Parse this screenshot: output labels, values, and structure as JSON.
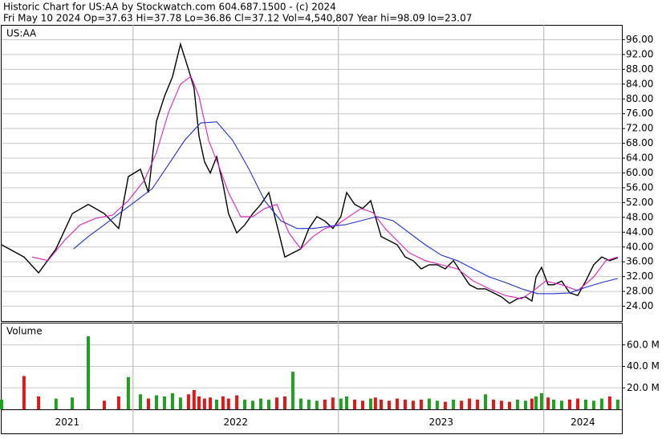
{
  "chart_data": {
    "type": "line",
    "title": "Historic Chart for US:AA by Stockwatch.com 604.687.1500 - (c) 2024",
    "subtitle": "Fri May 10 2024   Op=37.63   Hi=37.78   Lo=36.86   Cl=37.12   Vol=4,540,807   Year hi=98.09   lo=23.07",
    "symbol": "US:AA",
    "grid": true,
    "xlim": [
      2021.36,
      2024.38
    ],
    "xticks": [
      {
        "value": 2021,
        "label": "2021"
      },
      {
        "value": 2022,
        "label": "2022"
      },
      {
        "value": 2023,
        "label": "2023"
      },
      {
        "value": 2024,
        "label": "2024"
      }
    ],
    "ylim": [
      20,
      100
    ],
    "yticks": [
      {
        "value": 24,
        "label": "24.00"
      },
      {
        "value": 28,
        "label": "28.00"
      },
      {
        "value": 32,
        "label": "32.00"
      },
      {
        "value": 36,
        "label": "36.00"
      },
      {
        "value": 40,
        "label": "40.00"
      },
      {
        "value": 44,
        "label": "44.00"
      },
      {
        "value": 48,
        "label": "48.00"
      },
      {
        "value": 52,
        "label": "52.00"
      },
      {
        "value": 56,
        "label": "56.00"
      },
      {
        "value": 60,
        "label": "60.00"
      },
      {
        "value": 64,
        "label": "64.00"
      },
      {
        "value": 68,
        "label": "68.00"
      },
      {
        "value": 72,
        "label": "72.00"
      },
      {
        "value": 76,
        "label": "76.00"
      },
      {
        "value": 80,
        "label": "80.00"
      },
      {
        "value": 84,
        "label": "84.00"
      },
      {
        "value": 88,
        "label": "88.00"
      },
      {
        "value": 92,
        "label": "92.00"
      },
      {
        "value": 96,
        "label": "96.00"
      }
    ],
    "series": [
      {
        "color": "#000000",
        "x": [
          2021.36,
          2021.469,
          2021.54,
          2021.625,
          2021.704,
          2021.782,
          2021.86,
          2021.93,
          2021.977,
          2022.036,
          2022.075,
          2022.114,
          2022.153,
          2022.192,
          2022.231,
          2022.27,
          2022.297,
          2022.321,
          2022.348,
          2022.376,
          2022.407,
          2022.438,
          2022.465,
          2022.505,
          2022.544,
          2022.583,
          2022.622,
          2022.661,
          2022.7,
          2022.739,
          2022.778,
          2022.817,
          2022.856,
          2022.895,
          2022.934,
          2022.973,
          2023.012,
          2023.04,
          2023.079,
          2023.118,
          2023.157,
          2023.18,
          2023.208,
          2023.247,
          2023.286,
          2023.325,
          2023.364,
          2023.403,
          2023.442,
          2023.481,
          2023.52,
          2023.56,
          2023.599,
          2023.638,
          2023.677,
          2023.716,
          2023.755,
          2023.794,
          2023.833,
          2023.872,
          2023.911,
          2023.942,
          2023.962,
          2023.989,
          2024.021,
          2024.048,
          2024.087,
          2024.126,
          2024.165,
          2024.204,
          2024.243,
          2024.282,
          2024.321,
          2024.36
        ],
        "values": [
          40.6,
          37.3,
          33,
          39.5,
          49,
          51.5,
          49,
          45,
          59,
          61,
          54.7,
          74,
          80.7,
          86,
          94.8,
          88,
          83,
          70,
          63,
          60,
          64.4,
          57,
          49,
          43.8,
          46,
          49,
          51.5,
          54.7,
          46,
          37.3,
          38.4,
          39.5,
          45,
          48.2,
          47,
          45,
          48.2,
          54.7,
          51.5,
          50.4,
          52.5,
          48.2,
          42.8,
          41.7,
          40.6,
          37.3,
          36.3,
          34.1,
          35.2,
          35.2,
          34.1,
          36.3,
          33,
          29.8,
          28.7,
          28.7,
          27.6,
          26.5,
          24.8,
          26,
          26.5,
          25.4,
          31.9,
          34.5,
          29.8,
          29.8,
          30.8,
          27.6,
          26.9,
          30.8,
          35.2,
          37.3,
          36.3,
          37.1
        ]
      },
      {
        "color": "#e020c0",
        "x": [
          2021.508,
          2021.586,
          2021.665,
          2021.743,
          2021.821,
          2021.899,
          2021.977,
          2022.055,
          2022.114,
          2022.173,
          2022.231,
          2022.282,
          2022.321,
          2022.368,
          2022.415,
          2022.465,
          2022.524,
          2022.583,
          2022.641,
          2022.7,
          2022.759,
          2022.817,
          2022.876,
          2022.934,
          2022.993,
          2023.051,
          2023.11,
          2023.169,
          2023.227,
          2023.286,
          2023.345,
          2023.423,
          2023.501,
          2023.579,
          2023.657,
          2023.735,
          2023.813,
          2023.892,
          2023.95,
          2024.009,
          2024.087,
          2024.165,
          2024.243,
          2024.302,
          2024.36
        ],
        "values": [
          37.3,
          36.3,
          41.7,
          46,
          47.8,
          48.6,
          52.5,
          58,
          65.5,
          76.4,
          84,
          86.1,
          80.7,
          68.8,
          62.3,
          54.7,
          48.2,
          48.2,
          50.4,
          51.5,
          43.8,
          39.5,
          42.8,
          45,
          46,
          48.2,
          50.4,
          49.3,
          45,
          41.7,
          38.4,
          36.3,
          35.2,
          34.1,
          30.8,
          28.7,
          26.9,
          26,
          28.2,
          30.8,
          29.8,
          28.2,
          31.9,
          36.3,
          37.3
        ]
      },
      {
        "color": "#2030d0",
        "x": [
          2021.711,
          2021.782,
          2021.86,
          2021.938,
          2022.016,
          2022.094,
          2022.173,
          2022.251,
          2022.329,
          2022.407,
          2022.485,
          2022.563,
          2022.641,
          2022.719,
          2022.798,
          2022.876,
          2022.954,
          2023.032,
          2023.11,
          2023.188,
          2023.266,
          2023.345,
          2023.423,
          2023.501,
          2023.579,
          2023.657,
          2023.735,
          2023.813,
          2023.892,
          2023.97,
          2024.048,
          2024.126,
          2024.204,
          2024.282,
          2024.36
        ],
        "values": [
          39.5,
          42.8,
          46,
          49.3,
          52.5,
          55.8,
          62.3,
          68.8,
          73.5,
          73.8,
          68.8,
          61.2,
          52.5,
          47.1,
          45,
          45,
          45.6,
          46,
          47.1,
          48.2,
          47.1,
          43.8,
          40.6,
          37.8,
          36.3,
          34.1,
          31.9,
          30.4,
          28.7,
          27.4,
          27.4,
          27.6,
          29.1,
          30.4,
          31.5
        ]
      }
    ],
    "volume": {
      "label": "Volume",
      "ylim": [
        0,
        80
      ],
      "yticks": [
        {
          "value": 20,
          "label": "20.0 M"
        },
        {
          "value": 40,
          "label": "40.0 M"
        },
        {
          "value": 60,
          "label": "60.0 M"
        }
      ],
      "up_color": "#20a020",
      "down_color": "#e01818",
      "values": [
        9,
        31,
        12,
        10,
        11,
        68,
        8,
        12,
        30,
        14,
        10,
        13,
        12,
        15,
        11,
        14,
        18,
        12,
        10,
        11,
        9,
        12,
        10,
        13,
        9,
        8,
        10,
        9,
        11,
        12,
        35,
        10,
        9,
        8,
        9,
        11,
        10,
        12,
        9,
        8,
        10,
        11,
        9,
        8,
        10,
        9,
        8,
        9,
        10,
        8,
        7,
        9,
        8,
        10,
        9,
        14,
        9,
        8,
        7,
        9,
        8,
        10,
        12,
        15,
        11,
        9,
        8,
        9,
        10,
        9,
        8,
        10,
        12,
        9
      ]
    }
  }
}
